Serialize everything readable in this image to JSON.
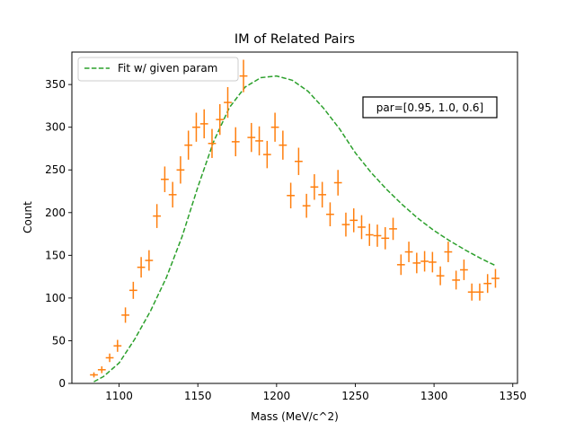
{
  "chart_data": {
    "type": "scatter",
    "title": "IM of Related Pairs",
    "xlabel": "Mass (MeV/c^2)",
    "ylabel": "Count",
    "xlim": [
      1070,
      1353
    ],
    "ylim": [
      0,
      388
    ],
    "xticks": [
      1100,
      1150,
      1200,
      1250,
      1300,
      1350
    ],
    "yticks": [
      0,
      50,
      100,
      150,
      200,
      250,
      300,
      350
    ],
    "grid": false,
    "legend": {
      "placement": "top-left",
      "entries": [
        "Fit w/ given param"
      ]
    },
    "annotation": "par=[0.95, 1.0, 0.6]",
    "colors": {
      "data": "#ff7f0e",
      "fit": "#2ca02c"
    },
    "series": [
      {
        "kind": "errorbar",
        "x": [
          1084,
          1089,
          1094,
          1099,
          1104,
          1109,
          1114,
          1119,
          1124,
          1129,
          1134,
          1139,
          1144,
          1149,
          1154,
          1159,
          1164,
          1169,
          1174,
          1179,
          1184,
          1189,
          1194,
          1199,
          1204,
          1209,
          1214,
          1219,
          1224,
          1229,
          1234,
          1239,
          1244,
          1249,
          1254,
          1259,
          1264,
          1269,
          1274,
          1279,
          1284,
          1289,
          1294,
          1299,
          1304,
          1309,
          1314,
          1319,
          1324,
          1329,
          1334,
          1339
        ],
        "y": [
          10,
          16,
          30,
          44,
          80,
          109,
          136,
          144,
          196,
          239,
          221,
          250,
          279,
          300,
          304,
          281,
          309,
          329,
          283,
          360,
          288,
          284,
          268,
          300,
          279,
          220,
          260,
          208,
          230,
          221,
          198,
          235,
          186,
          191,
          183,
          174,
          173,
          170,
          181,
          139,
          154,
          141,
          143,
          142,
          126,
          154,
          121,
          133,
          107,
          107,
          117,
          123
        ],
        "yerr": [
          3,
          4,
          5,
          7,
          9,
          10,
          12,
          12,
          14,
          15,
          15,
          16,
          17,
          17,
          17,
          17,
          18,
          18,
          17,
          19,
          17,
          17,
          16,
          17,
          17,
          15,
          16,
          14,
          15,
          15,
          14,
          15,
          14,
          14,
          14,
          13,
          13,
          13,
          13,
          12,
          12,
          12,
          12,
          12,
          11,
          12,
          11,
          12,
          10,
          10,
          11,
          11
        ],
        "xerr": 2.5
      },
      {
        "name": "Fit w/ given param",
        "kind": "dashed-line",
        "x": [
          1084,
          1090,
          1100,
          1110,
          1120,
          1130,
          1140,
          1150,
          1160,
          1170,
          1180,
          1190,
          1200,
          1210,
          1220,
          1230,
          1240,
          1250,
          1260,
          1270,
          1280,
          1290,
          1300,
          1310,
          1320,
          1330,
          1339
        ],
        "y": [
          2,
          8,
          24,
          52,
          85,
          124,
          172,
          230,
          283,
          323,
          347,
          358,
          360,
          355,
          342,
          322,
          298,
          270,
          247,
          227,
          209,
          193,
          179,
          167,
          156,
          146,
          138
        ]
      }
    ]
  }
}
